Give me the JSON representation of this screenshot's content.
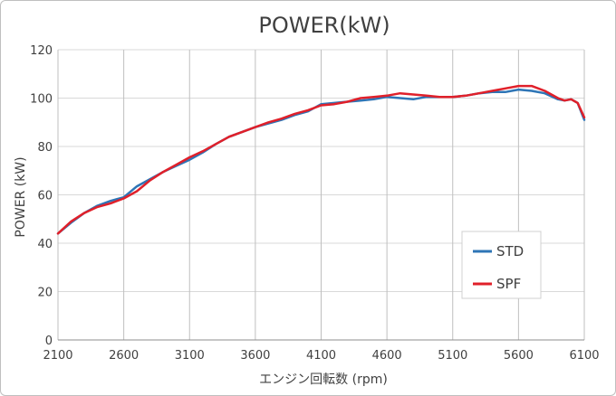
{
  "chart_data": {
    "type": "line",
    "title": "POWER(kW)",
    "xlabel": "エンジン回転数 (rpm)",
    "ylabel": "POWER (kW)",
    "xlim": [
      2100,
      6100
    ],
    "ylim": [
      0,
      120
    ],
    "xticks": [
      2100,
      2600,
      3100,
      3600,
      4100,
      4600,
      5100,
      5600,
      6100
    ],
    "yticks": [
      0,
      20,
      40,
      60,
      80,
      100,
      120
    ],
    "grid": true,
    "legend_position": "bottom-right",
    "series": [
      {
        "name": "STD",
        "color": "#2e75b6",
        "x": [
          2100,
          2200,
          2300,
          2400,
          2500,
          2600,
          2700,
          2800,
          2900,
          3000,
          3100,
          3200,
          3300,
          3400,
          3500,
          3600,
          3700,
          3800,
          3900,
          4000,
          4100,
          4200,
          4300,
          4400,
          4500,
          4600,
          4700,
          4800,
          4900,
          5000,
          5100,
          5200,
          5300,
          5400,
          5500,
          5600,
          5700,
          5800,
          5900,
          5950,
          6000,
          6050,
          6100
        ],
        "y": [
          44,
          48.5,
          52.5,
          55.5,
          57.5,
          59,
          63.5,
          66.5,
          69.5,
          72,
          74.5,
          77.5,
          81,
          84,
          86,
          88,
          89.5,
          91,
          93,
          94.5,
          97.5,
          98,
          98.5,
          99,
          99.5,
          100.5,
          100,
          99.5,
          100.5,
          100.5,
          100.5,
          101,
          102,
          102.5,
          102.5,
          103.5,
          103,
          102,
          99.5,
          99,
          99.5,
          98,
          91
        ]
      },
      {
        "name": "SPF",
        "color": "#e0202a",
        "x": [
          2100,
          2200,
          2300,
          2400,
          2500,
          2600,
          2700,
          2800,
          2900,
          3000,
          3100,
          3200,
          3300,
          3400,
          3500,
          3600,
          3700,
          3800,
          3900,
          4000,
          4100,
          4200,
          4300,
          4400,
          4500,
          4600,
          4700,
          4800,
          4900,
          5000,
          5100,
          5200,
          5300,
          5400,
          5500,
          5600,
          5700,
          5800,
          5900,
          5950,
          6000,
          6050,
          6100
        ],
        "y": [
          44,
          49,
          52.5,
          55,
          56.5,
          58.5,
          61.5,
          66,
          69.5,
          72.5,
          75.5,
          78,
          81,
          84,
          86,
          88,
          90,
          91.5,
          93.5,
          95,
          97,
          97.5,
          98.5,
          100,
          100.5,
          101,
          102,
          101.5,
          101,
          100.5,
          100.5,
          101,
          102,
          103,
          104,
          105,
          105,
          103,
          100,
          99,
          99.5,
          98,
          92
        ]
      }
    ]
  }
}
